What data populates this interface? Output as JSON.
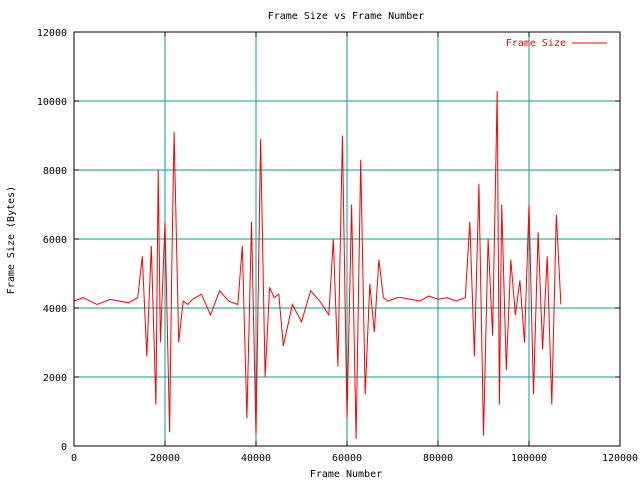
{
  "chart_data": {
    "type": "line",
    "title": "Frame Size vs Frame Number",
    "xlabel": "Frame Number",
    "ylabel": "Frame Size (Bytes)",
    "xlim": [
      0,
      120000
    ],
    "ylim": [
      0,
      12000
    ],
    "x_ticks": [
      0,
      20000,
      40000,
      60000,
      80000,
      100000,
      120000
    ],
    "y_ticks": [
      0,
      2000,
      4000,
      6000,
      8000,
      10000,
      12000
    ],
    "x_tick_labels": [
      "0",
      "20000",
      "40000",
      "60000",
      "80000",
      "100000",
      "120000"
    ],
    "y_tick_labels": [
      "0",
      "2000",
      "4000",
      "6000",
      "8000",
      "10000",
      "12000"
    ],
    "grid": true,
    "legend_position": "top-right",
    "series": [
      {
        "name": "Frame Size",
        "color": "#ff0000",
        "x": [
          0,
          2000,
          5000,
          8000,
          10000,
          12000,
          14000,
          15000,
          16000,
          17000,
          18000,
          18500,
          19000,
          20000,
          21000,
          21500,
          22000,
          23000,
          24000,
          25000,
          26000,
          28000,
          30000,
          32000,
          34000,
          36000,
          37000,
          38000,
          39000,
          40000,
          41000,
          42000,
          43000,
          44000,
          45000,
          46000,
          48000,
          50000,
          52000,
          54000,
          56000,
          57000,
          58000,
          59000,
          60000,
          61000,
          62000,
          63000,
          64000,
          65000,
          66000,
          67000,
          68000,
          69000,
          70000,
          71000,
          72000,
          74000,
          76000,
          78000,
          80000,
          82000,
          84000,
          86000,
          87000,
          88000,
          89000,
          90000,
          91000,
          92000,
          93000,
          93500,
          94000,
          95000,
          96000,
          97000,
          98000,
          99000,
          100000,
          101000,
          102000,
          103000,
          104000,
          105000,
          106000,
          107000
        ],
        "values": [
          4200,
          4300,
          4100,
          4250,
          4200,
          4150,
          4300,
          5500,
          2600,
          5800,
          1200,
          8000,
          3000,
          6500,
          400,
          5200,
          9100,
          3000,
          4200,
          4100,
          4250,
          4400,
          3800,
          4500,
          4200,
          4100,
          5800,
          800,
          6500,
          300,
          8900,
          2000,
          4600,
          4300,
          4400,
          2900,
          4100,
          3600,
          4500,
          4200,
          3800,
          6000,
          2300,
          9000,
          800,
          7000,
          200,
          8300,
          1500,
          4700,
          3300,
          5400,
          4300,
          4200,
          4250,
          4300,
          4300,
          4250,
          4200,
          4350,
          4250,
          4300,
          4200,
          4300,
          6500,
          2600,
          7600,
          300,
          6000,
          3200,
          10300,
          1200,
          7000,
          2200,
          5400,
          3800,
          4800,
          3000,
          7000,
          1500,
          6200,
          2800,
          5500,
          1200,
          6700,
          4100
        ]
      }
    ]
  }
}
